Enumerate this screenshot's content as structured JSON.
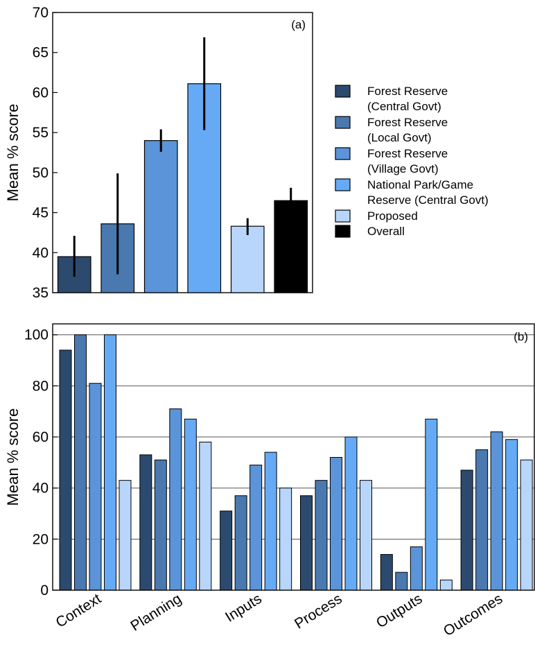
{
  "series_colors": [
    "#2c4a6e",
    "#4a79b0",
    "#5b94d8",
    "#66aaf5",
    "#b8d6fb",
    "#000000"
  ],
  "legend": {
    "entries": [
      {
        "lines": [
          "Forest Reserve",
          "(Central Govt)"
        ]
      },
      {
        "lines": [
          "Forest Reserve",
          "(Local Govt)"
        ]
      },
      {
        "lines": [
          "Forest Reserve",
          "(Village Govt)"
        ]
      },
      {
        "lines": [
          "National Park/Game",
          "Reserve (Central Govt)"
        ]
      },
      {
        "lines": [
          "Proposed"
        ]
      },
      {
        "lines": [
          "Overall"
        ]
      }
    ]
  },
  "chart_data": [
    {
      "type": "bar",
      "panel_label": "(a)",
      "ylabel": "Mean % score",
      "ylim": [
        35,
        70
      ],
      "yticks": [
        35,
        40,
        45,
        50,
        55,
        60,
        65,
        70
      ],
      "grid": false,
      "legend_position": "right",
      "bars": [
        {
          "name": "Forest Reserve (Central Govt)",
          "value": 39.5,
          "err_low": 37.0,
          "err_high": 42.1
        },
        {
          "name": "Forest Reserve (Local Govt)",
          "value": 43.6,
          "err_low": 37.3,
          "err_high": 49.9
        },
        {
          "name": "Forest Reserve (Village Govt)",
          "value": 54.0,
          "err_low": 52.6,
          "err_high": 55.4
        },
        {
          "name": "National Park/Game Reserve (Central Govt)",
          "value": 61.1,
          "err_low": 55.3,
          "err_high": 66.9
        },
        {
          "name": "Proposed",
          "value": 43.3,
          "err_low": 42.2,
          "err_high": 44.3
        },
        {
          "name": "Overall",
          "value": 46.5,
          "err_low": 44.9,
          "err_high": 48.1
        }
      ]
    },
    {
      "type": "bar",
      "panel_label": "(b)",
      "ylabel": "Mean % score",
      "ylim": [
        0,
        100
      ],
      "yticks": [
        0,
        20,
        40,
        60,
        80,
        100
      ],
      "grid": true,
      "categories": [
        "Context",
        "Planning",
        "Inputs",
        "Process",
        "Outputs",
        "Outcomes"
      ],
      "series": [
        {
          "name": "Forest Reserve (Central Govt)",
          "values": [
            94,
            53,
            31,
            37,
            14,
            47
          ]
        },
        {
          "name": "Forest Reserve (Local Govt)",
          "values": [
            100,
            51,
            37,
            43,
            7,
            55
          ]
        },
        {
          "name": "Forest Reserve (Village Govt)",
          "values": [
            81,
            71,
            49,
            52,
            17,
            62
          ]
        },
        {
          "name": "National Park/Game Reserve (Central Govt)",
          "values": [
            100,
            67,
            54,
            60,
            67,
            59
          ]
        },
        {
          "name": "Proposed",
          "values": [
            43,
            58,
            40,
            43,
            4,
            51
          ]
        }
      ]
    }
  ]
}
